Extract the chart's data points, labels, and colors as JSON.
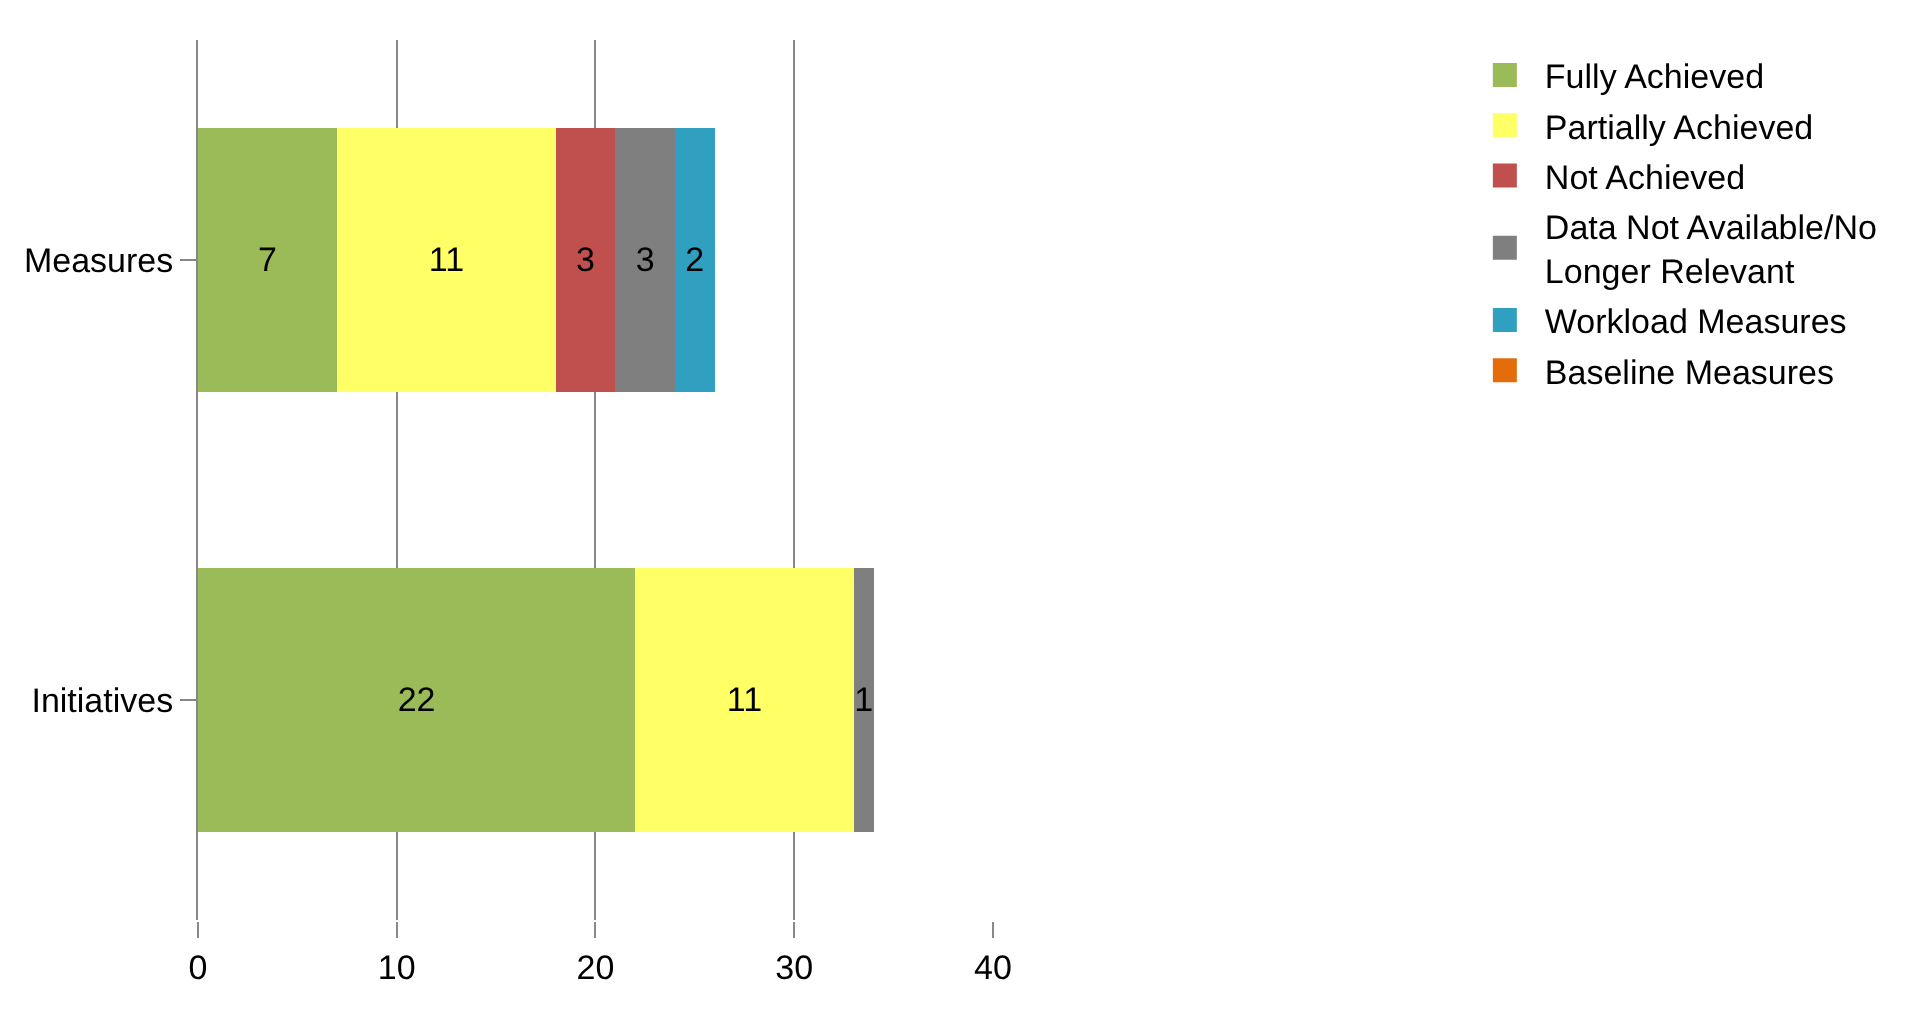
{
  "chart_data": {
    "type": "bar",
    "orientation": "horizontal",
    "stacked": true,
    "categories": [
      "Measures",
      "Initiatives"
    ],
    "series": [
      {
        "name": "Fully Achieved",
        "color": "#9bbb59",
        "values": [
          7,
          22
        ]
      },
      {
        "name": "Partially Achieved",
        "color": "#ffff66",
        "values": [
          11,
          11
        ]
      },
      {
        "name": "Not Achieved",
        "color": "#c0504d",
        "values": [
          3,
          null
        ]
      },
      {
        "name": "Data Not Available/No Longer Relevant",
        "color": "#7f7f7f",
        "values": [
          3,
          1
        ]
      },
      {
        "name": "Workload Measures",
        "color": "#31a0c0",
        "values": [
          2,
          null
        ]
      },
      {
        "name": "Baseline Measures",
        "color": "#e46c0a",
        "values": [
          null,
          null
        ]
      }
    ],
    "xlim": [
      0,
      40
    ],
    "xticks": [
      0,
      10,
      20,
      30,
      40
    ],
    "grid": "x",
    "legend": "right",
    "data_labels": true
  }
}
